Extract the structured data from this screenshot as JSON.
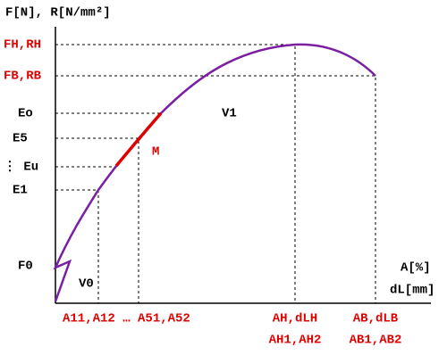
{
  "axis_titles": {
    "y": "F[N], R[N/mm²]",
    "x_top": "A[%]",
    "x_bottom": "dL[mm]"
  },
  "y_labels": {
    "fh_rh": "FH,RH",
    "fb_rb": "FB,RB",
    "eo": "Eo",
    "e5": "E5",
    "eu": "⋮ Eu",
    "e1": "E1",
    "f0": "F0"
  },
  "region_labels": {
    "v1": "V1",
    "v0": "V0",
    "m": "M"
  },
  "x_labels": {
    "a_start": "A11,A12 … A51,A52",
    "ah_1": "AH,dLH",
    "ah_2": "AH1,AH2",
    "ab_1": "AB,dLB",
    "ab_2": "AB1,AB2"
  }
}
